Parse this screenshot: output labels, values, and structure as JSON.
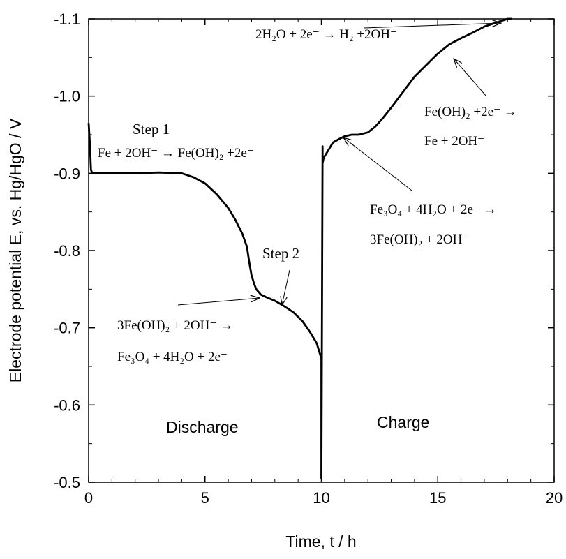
{
  "chart_data": {
    "type": "line",
    "title": "",
    "xlabel": "Time, t / h",
    "ylabel": "Electrode potential E, vs. Hg/HgO / V",
    "xlim": [
      0,
      20
    ],
    "ylim": [
      -0.5,
      -1.1
    ],
    "y_axis_inverted": true,
    "grid": false,
    "legend": "none",
    "x_ticks": [
      "0",
      "5",
      "10",
      "15",
      "20"
    ],
    "y_ticks": [
      "-0.5",
      "-0.6",
      "-0.7",
      "-0.8",
      "-0.9",
      "-1.0",
      "-1.1"
    ],
    "series": [
      {
        "x": [
          0.0,
          0.05,
          0.1,
          0.15,
          0.3,
          0.6,
          1.0,
          2.0,
          3.0,
          4.0,
          4.5,
          5.0,
          5.5,
          6.0,
          6.3,
          6.6,
          6.8,
          6.9,
          7.0,
          7.1,
          7.2,
          7.4,
          7.6,
          8.0,
          8.4,
          8.8,
          9.2,
          9.5,
          9.8,
          9.95,
          10.0,
          10.0,
          10.05,
          10.05,
          10.1,
          10.3,
          10.5,
          10.8,
          11.0,
          11.3,
          11.6,
          12.0,
          12.3,
          12.6,
          13.0,
          13.5,
          14.0,
          14.5,
          15.0,
          15.5,
          16.0,
          16.5,
          17.0,
          17.5,
          18.0,
          18.2
        ],
        "y": [
          -0.965,
          -0.94,
          -0.905,
          -0.9,
          -0.9,
          -0.9,
          -0.9,
          -0.9,
          -0.901,
          -0.9,
          -0.895,
          -0.887,
          -0.873,
          -0.855,
          -0.84,
          -0.822,
          -0.805,
          -0.785,
          -0.768,
          -0.758,
          -0.75,
          -0.743,
          -0.74,
          -0.735,
          -0.728,
          -0.72,
          -0.708,
          -0.695,
          -0.68,
          -0.665,
          -0.66,
          -0.505,
          -0.935,
          -0.913,
          -0.92,
          -0.93,
          -0.94,
          -0.945,
          -0.948,
          -0.95,
          -0.95,
          -0.953,
          -0.96,
          -0.97,
          -0.985,
          -1.005,
          -1.025,
          -1.04,
          -1.055,
          -1.067,
          -1.075,
          -1.082,
          -1.09,
          -1.095,
          -1.1,
          -1.1
        ]
      }
    ],
    "annotations": {
      "step1_title": "Step 1",
      "step1_reaction": "Fe + 2OH⁻ → Fe(OH)₂ +2e⁻",
      "step2_title": "Step 2",
      "step2_reaction_line1": "3Fe(OH)₂ + 2OH⁻ →",
      "step2_reaction_line2": "Fe₃O₄ + 4H₂O + 2e⁻",
      "charge_reaction1_line1": "Fe₃O₄ + 4H₂O + 2e⁻ →",
      "charge_reaction1_line2": "3Fe(OH)₂ + 2OH⁻",
      "charge_reaction2_line1": "Fe(OH)₂ +2e⁻ →",
      "charge_reaction2_line2": "Fe + 2OH⁻",
      "h2_reaction": "2H₂O + 2e⁻ → H₂ +2OH⁻",
      "discharge_label": "Discharge",
      "charge_label": "Charge"
    }
  }
}
